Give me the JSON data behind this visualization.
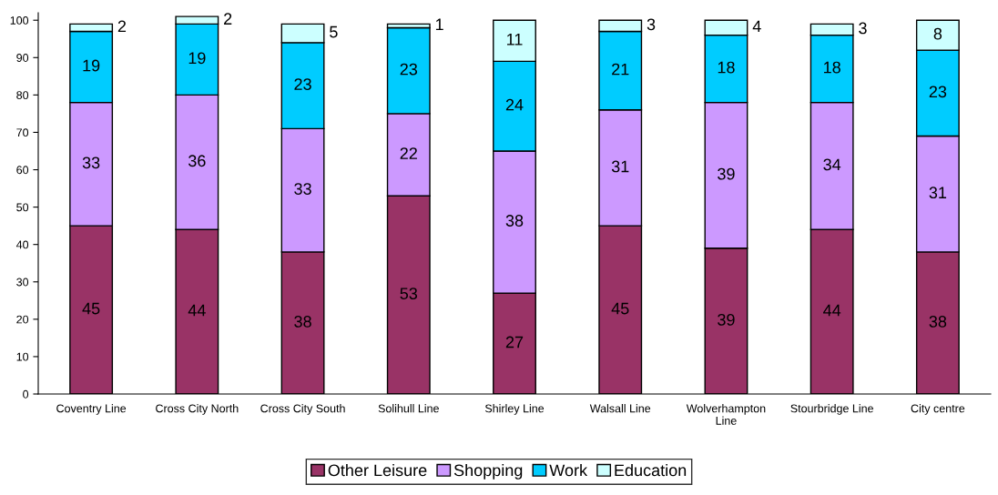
{
  "chart_data": {
    "type": "bar",
    "stacked": true,
    "categories": [
      "Coventry Line",
      "Cross City North",
      "Cross City South",
      "Solihull Line",
      "Shirley Line",
      "Walsall Line",
      "Wolverhampton Line",
      "Stourbridge Line",
      "City centre"
    ],
    "series": [
      {
        "name": "Other Leisure",
        "color": "#993366",
        "values": [
          45,
          44,
          38,
          53,
          27,
          45,
          39,
          44,
          38
        ]
      },
      {
        "name": "Shopping",
        "color": "#cc99ff",
        "values": [
          33,
          36,
          33,
          22,
          38,
          31,
          39,
          34,
          31
        ]
      },
      {
        "name": "Work",
        "color": "#00ccff",
        "values": [
          19,
          19,
          23,
          23,
          24,
          21,
          18,
          18,
          23
        ]
      },
      {
        "name": "Education",
        "color": "#ccffff",
        "values": [
          2,
          2,
          5,
          1,
          11,
          3,
          4,
          3,
          8
        ]
      }
    ],
    "ylim": [
      0,
      102
    ],
    "yticks": [
      0,
      10,
      20,
      30,
      40,
      50,
      60,
      70,
      80,
      90,
      100
    ],
    "data_labels": true,
    "grid": false,
    "legend": "bottom"
  }
}
